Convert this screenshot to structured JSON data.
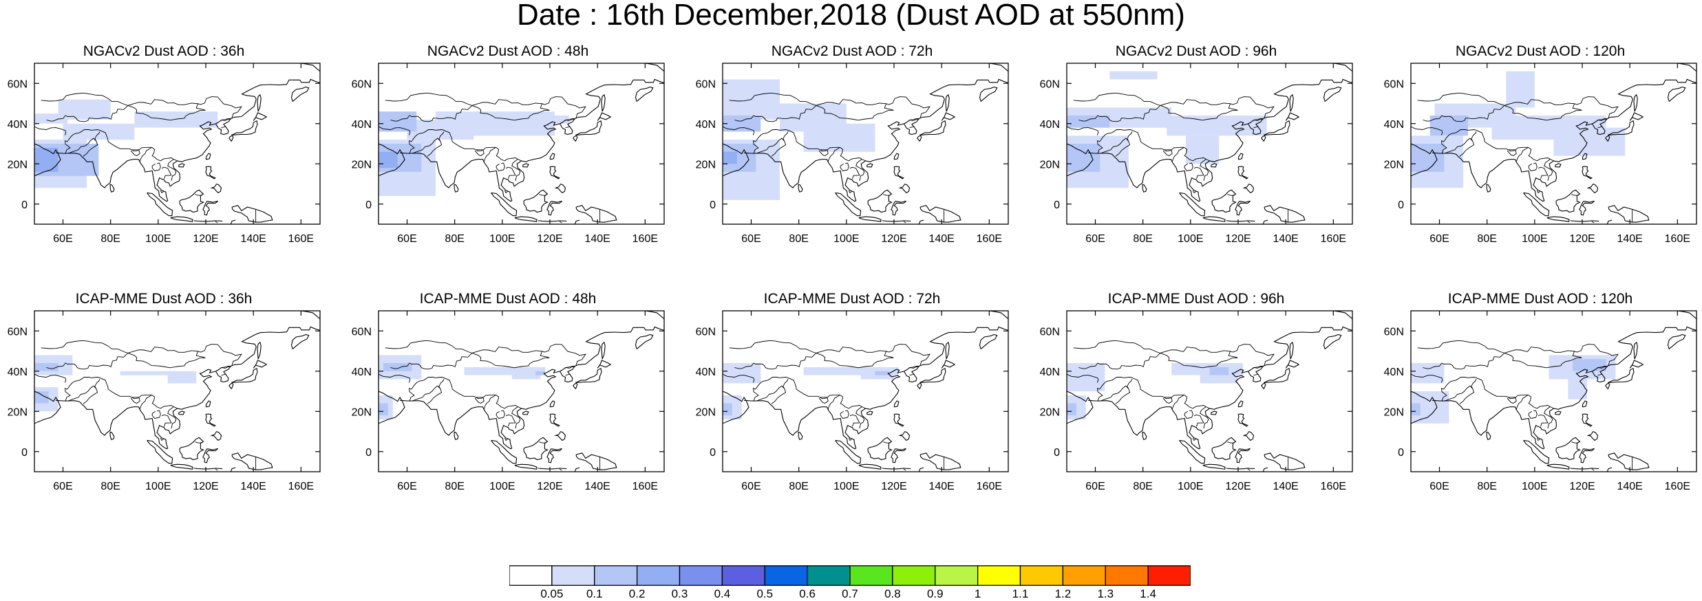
{
  "title": "Date : 16th December,2018 (Dust AOD at 550nm)",
  "x_tick_labels": [
    "60E",
    "80E",
    "100E",
    "120E",
    "140E",
    "160E"
  ],
  "y_tick_labels": [
    "60N",
    "40N",
    "20N",
    "0"
  ],
  "rows": [
    {
      "model": "NGACv2",
      "panels": [
        {
          "title": "NGACv2 Dust AOD : 36h",
          "lead_hours": 36
        },
        {
          "title": "NGACv2 Dust AOD : 48h",
          "lead_hours": 48
        },
        {
          "title": "NGACv2 Dust AOD : 72h",
          "lead_hours": 72
        },
        {
          "title": "NGACv2 Dust AOD : 96h",
          "lead_hours": 96
        },
        {
          "title": "NGACv2 Dust AOD : 120h",
          "lead_hours": 120
        }
      ]
    },
    {
      "model": "ICAP-MME",
      "panels": [
        {
          "title": "ICAP-MME Dust AOD : 36h",
          "lead_hours": 36
        },
        {
          "title": "ICAP-MME Dust AOD : 48h",
          "lead_hours": 48
        },
        {
          "title": "ICAP-MME Dust AOD : 72h",
          "lead_hours": 72
        },
        {
          "title": "ICAP-MME Dust AOD : 96h",
          "lead_hours": 96
        },
        {
          "title": "ICAP-MME Dust AOD : 120h",
          "lead_hours": 120
        }
      ]
    }
  ],
  "colorbar": {
    "labels": [
      "0.05",
      "0.1",
      "0.2",
      "0.3",
      "0.4",
      "0.5",
      "0.6",
      "0.7",
      "0.8",
      "0.9",
      "1",
      "1.1",
      "1.2",
      "1.3",
      "1.4"
    ],
    "colors": [
      "#ffffff",
      "#d4defa",
      "#b3c6f5",
      "#93aef3",
      "#7a90ee",
      "#5b5fe0",
      "#0a64e6",
      "#00908e",
      "#5ae61e",
      "#8cf00a",
      "#b9f546",
      "#ffff00",
      "#ffc800",
      "#ffa000",
      "#ff7800",
      "#ff1e00"
    ]
  }
}
